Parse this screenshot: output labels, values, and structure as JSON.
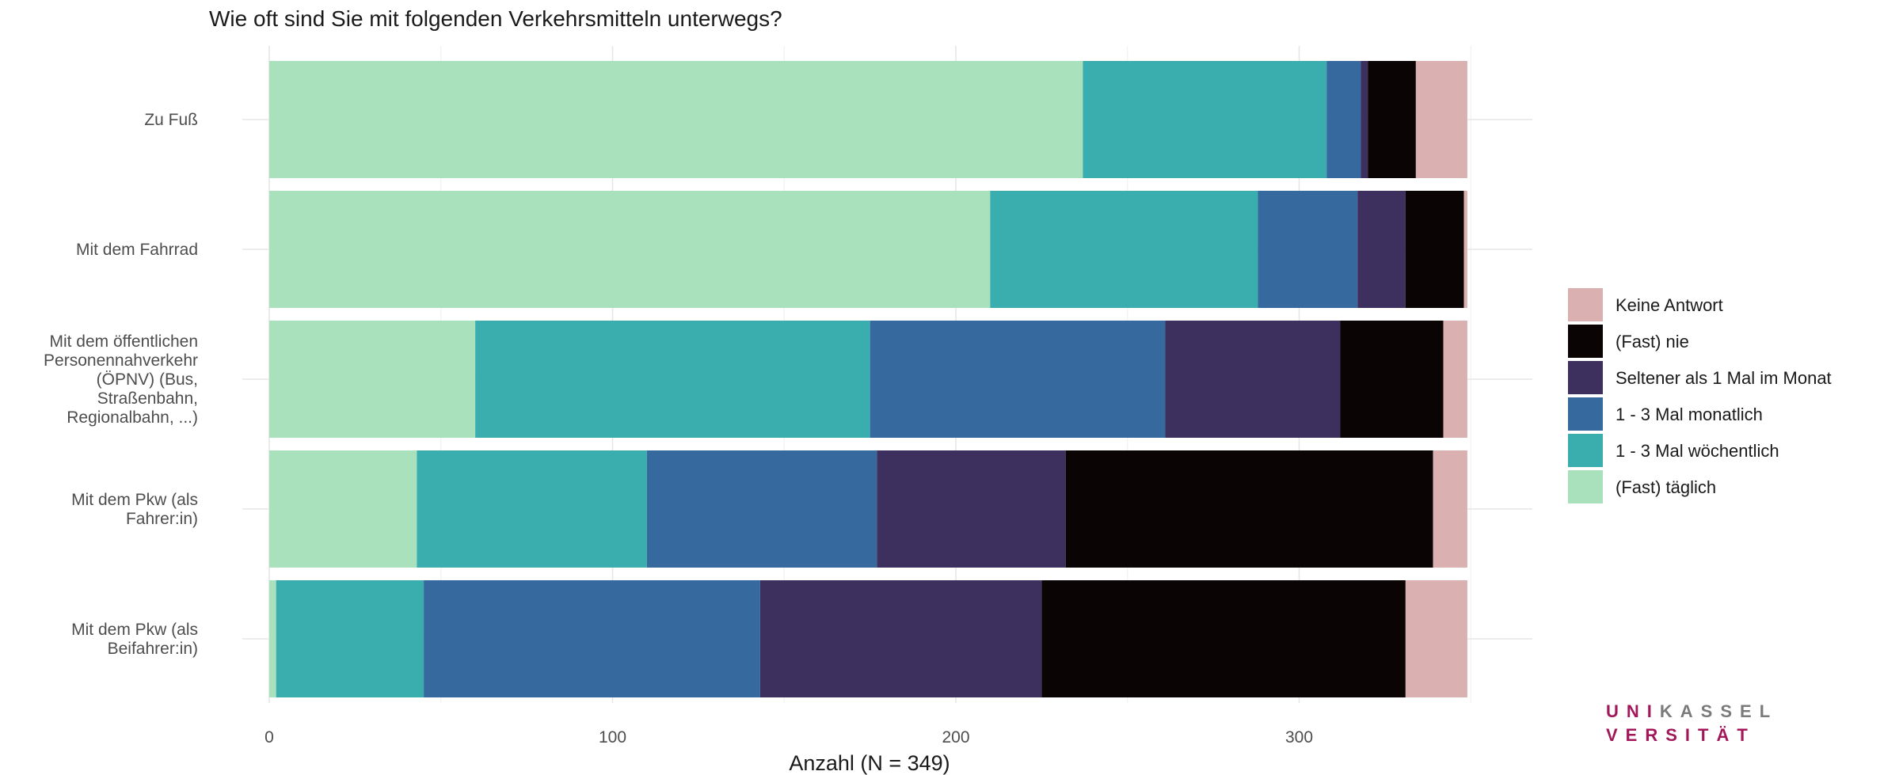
{
  "chart_data": {
    "type": "bar",
    "orientation": "horizontal",
    "stacked": true,
    "title": "Wie oft sind Sie mit folgenden Verkehrsmitteln unterwegs?",
    "xlabel": "Anzahl (N = 349)",
    "ylabel": "",
    "xlim": [
      0,
      349
    ],
    "xticks": [
      "0",
      "100",
      "200",
      "300"
    ],
    "grid": true,
    "legend_position": "right",
    "categories": [
      [
        "Zu Fuß"
      ],
      [
        "Mit dem Fahrrad"
      ],
      [
        "Mit dem öffentlichen",
        "Personennahverkehr",
        "(ÖPNV) (Bus,",
        "Straßenbahn,",
        "Regionalbahn, ...)"
      ],
      [
        "Mit dem Pkw (als",
        "Fahrer:in)"
      ],
      [
        "Mit dem Pkw (als",
        "Beifahrer:in)"
      ]
    ],
    "series": [
      {
        "name": "(Fast) täglich",
        "color": "#a8e1bc",
        "values": [
          237,
          210,
          60,
          43,
          2
        ]
      },
      {
        "name": "1 - 3 Mal wöchentlich",
        "color": "#3aaeae",
        "values": [
          71,
          78,
          115,
          67,
          43
        ]
      },
      {
        "name": "1 - 3 Mal monatlich",
        "color": "#366a9f",
        "values": [
          10,
          29,
          86,
          67,
          98
        ]
      },
      {
        "name": "Seltener als 1 Mal im Monat",
        "color": "#3d2f5e",
        "values": [
          2,
          14,
          51,
          55,
          82
        ]
      },
      {
        "name": "(Fast) nie",
        "color": "#0a0405",
        "values": [
          14,
          17,
          30,
          107,
          106
        ]
      },
      {
        "name": "Keine Antwort",
        "color": "#dbb0b0",
        "values": [
          15,
          1,
          7,
          10,
          18
        ]
      }
    ]
  },
  "logo": {
    "line1_highlight": "UNI",
    "line1_rest": "KASSEL",
    "line2_highlight": "VERSITÄT"
  }
}
